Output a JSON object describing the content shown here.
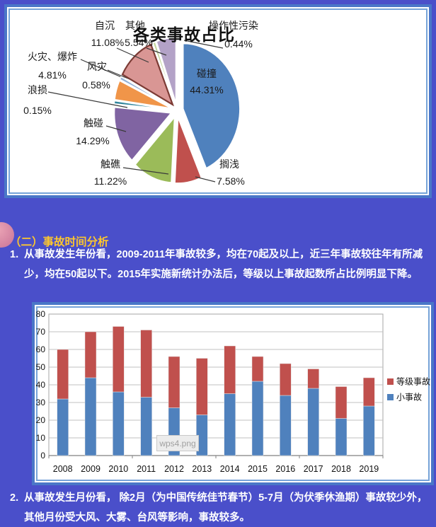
{
  "page": {
    "bg": "#4a4fca",
    "accent_yellow": "#fcc62e",
    "text_color": "#ffffff"
  },
  "analysis": {
    "heading": "（二）事故时间分析",
    "item1_marker": "1.",
    "item1": "从事故发生年份看，2009-2011年事故较多，均在70起及以上，近三年事故较往年有所减少，均在50起以下。2015年实施新统计办法后，等级以上事故起数所占比例明显下降。",
    "item2_marker": "2.",
    "item2": "从事故发生月份看， 除2月（为中国传统佳节春节）5-7月（为伏季休渔期）事故较少外，其他月份受大风、大雾、台风等影响，事故较多。"
  },
  "watermark": "wps4.png",
  "chart_data": [
    {
      "type": "pie",
      "title": "各类事故占比",
      "exploded": true,
      "slices": [
        {
          "label": "碰撞",
          "pct": 44.31,
          "color": "#4f81bd"
        },
        {
          "label": "搁浅",
          "pct": 7.58,
          "color": "#c0504d"
        },
        {
          "label": "触礁",
          "pct": 11.22,
          "color": "#9bbb59"
        },
        {
          "label": "触碰",
          "pct": 14.29,
          "color": "#8064a2"
        },
        {
          "label": "浪损",
          "pct": 0.15,
          "color": "#31859c"
        },
        {
          "label": "火灾、爆炸",
          "pct": 4.81,
          "color": "#f09549"
        },
        {
          "label": "风灾",
          "pct": 0.58,
          "color": "#95b3d7"
        },
        {
          "label": "自沉",
          "pct": 11.08,
          "color": "#d99694"
        },
        {
          "label": "操作性污染",
          "pct": 0.44,
          "color": "#c3d69b"
        },
        {
          "label": "其他",
          "pct": 5.54,
          "color": "#b3a2c7"
        }
      ]
    },
    {
      "type": "bar",
      "stacked": true,
      "categories": [
        "2008",
        "2009",
        "2010",
        "2011",
        "2012",
        "2013",
        "2014",
        "2015",
        "2016",
        "2017",
        "2018",
        "2019"
      ],
      "series": [
        {
          "name": "小事故",
          "color": "#4f81bd",
          "values": [
            32,
            44,
            36,
            33,
            27,
            23,
            35,
            42,
            34,
            38,
            21,
            28
          ]
        },
        {
          "name": "等级事故",
          "color": "#c0504d",
          "values": [
            28,
            26,
            37,
            38,
            29,
            32,
            27,
            14,
            18,
            11,
            18,
            16
          ]
        }
      ],
      "ylim": [
        0,
        80
      ],
      "ytick_step": 10,
      "grid": true,
      "legend_position": "right",
      "legend_order": [
        "等级事故",
        "小事故"
      ]
    }
  ]
}
